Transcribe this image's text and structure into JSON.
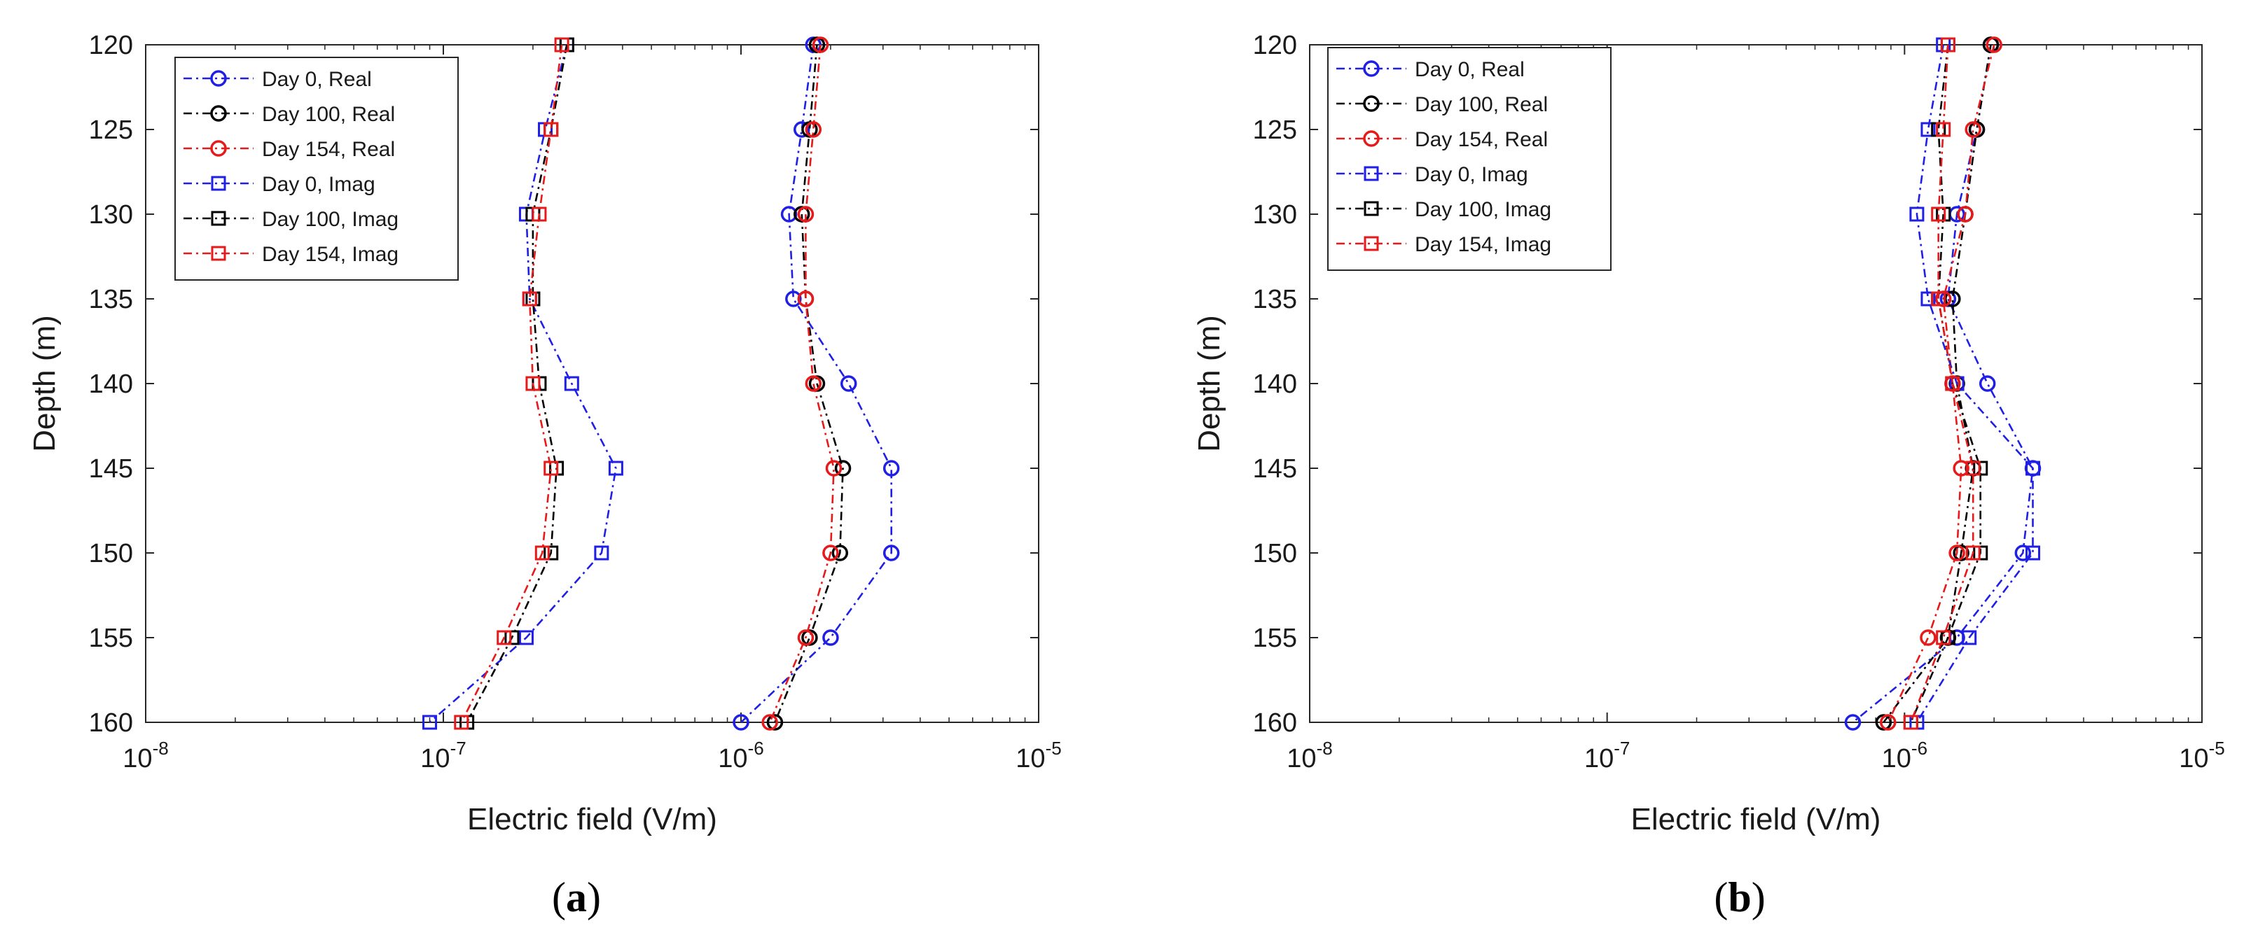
{
  "figure": {
    "panels": [
      {
        "open": "(",
        "letter": "a",
        "close": ")"
      },
      {
        "open": "(",
        "letter": "b",
        "close": ")"
      }
    ]
  },
  "colors": {
    "blue": "#1f1fe6",
    "black": "#000000",
    "red": "#e61a1a"
  },
  "chart_data": [
    {
      "type": "line",
      "panel": "a",
      "xlabel": "Electric field (V/m)",
      "ylabel": "Depth (m)",
      "xscale": "log",
      "xlim": [
        1e-08,
        1e-05
      ],
      "ylim": [
        120,
        160
      ],
      "y_reversed": true,
      "xticks": [
        {
          "base": "10",
          "exp": "-8",
          "value": 1e-08
        },
        {
          "base": "10",
          "exp": "-7",
          "value": 1e-07
        },
        {
          "base": "10",
          "exp": "-6",
          "value": 1e-06
        },
        {
          "base": "10",
          "exp": "-5",
          "value": 1e-05
        }
      ],
      "yticks": [
        "120",
        "125",
        "130",
        "135",
        "140",
        "145",
        "150",
        "155",
        "160"
      ],
      "legend_position": "top-left",
      "depth": [
        120,
        125,
        130,
        135,
        140,
        145,
        150,
        155,
        160
      ],
      "series": [
        {
          "name": "Day 0, Real",
          "color": "blue",
          "marker": "circle",
          "values": [
            1.75e-06,
            1.6e-06,
            1.45e-06,
            1.5e-06,
            2.3e-06,
            3.2e-06,
            3.2e-06,
            2e-06,
            1e-06
          ]
        },
        {
          "name": "Day 100, Real",
          "color": "black",
          "marker": "circle",
          "values": [
            1.8e-06,
            1.7e-06,
            1.6e-06,
            1.65e-06,
            1.8e-06,
            2.2e-06,
            2.15e-06,
            1.7e-06,
            1.3e-06
          ]
        },
        {
          "name": "Day 154, Real",
          "color": "red",
          "marker": "circle",
          "values": [
            1.85e-06,
            1.75e-06,
            1.65e-06,
            1.65e-06,
            1.75e-06,
            2.05e-06,
            2e-06,
            1.65e-06,
            1.25e-06
          ]
        },
        {
          "name": "Day 0, Imag",
          "color": "blue",
          "marker": "square",
          "values": [
            2.6e-07,
            2.2e-07,
            1.9e-07,
            1.95e-07,
            2.7e-07,
            3.8e-07,
            3.4e-07,
            1.9e-07,
            9e-08
          ]
        },
        {
          "name": "Day 100, Imag",
          "color": "black",
          "marker": "square",
          "values": [
            2.6e-07,
            2.3e-07,
            2e-07,
            2e-07,
            2.1e-07,
            2.4e-07,
            2.3e-07,
            1.7e-07,
            1.2e-07
          ]
        },
        {
          "name": "Day 154, Imag",
          "color": "red",
          "marker": "square",
          "values": [
            2.5e-07,
            2.3e-07,
            2.1e-07,
            1.95e-07,
            2e-07,
            2.3e-07,
            2.15e-07,
            1.6e-07,
            1.15e-07
          ]
        }
      ]
    },
    {
      "type": "line",
      "panel": "b",
      "xlabel": "Electric field (V/m)",
      "ylabel": "Depth (m)",
      "xscale": "log",
      "xlim": [
        1e-08,
        1e-05
      ],
      "ylim": [
        120,
        160
      ],
      "y_reversed": true,
      "xticks": [
        {
          "base": "10",
          "exp": "-8",
          "value": 1e-08
        },
        {
          "base": "10",
          "exp": "-7",
          "value": 1e-07
        },
        {
          "base": "10",
          "exp": "-6",
          "value": 1e-06
        },
        {
          "base": "10",
          "exp": "-5",
          "value": 1e-05
        }
      ],
      "yticks": [
        "120",
        "125",
        "130",
        "135",
        "140",
        "145",
        "150",
        "155",
        "160"
      ],
      "legend_position": "top-left",
      "depth": [
        120,
        125,
        130,
        135,
        140,
        145,
        150,
        155,
        160
      ],
      "series": [
        {
          "name": "Day 0, Real",
          "color": "blue",
          "marker": "circle",
          "values": [
            1.95e-06,
            1.75e-06,
            1.5e-06,
            1.4e-06,
            1.9e-06,
            2.7e-06,
            2.5e-06,
            1.5e-06,
            6.7e-07
          ]
        },
        {
          "name": "Day 100, Real",
          "color": "black",
          "marker": "circle",
          "values": [
            1.95e-06,
            1.75e-06,
            1.6e-06,
            1.45e-06,
            1.5e-06,
            1.7e-06,
            1.55e-06,
            1.4e-06,
            8.5e-07
          ]
        },
        {
          "name": "Day 154, Real",
          "color": "red",
          "marker": "circle",
          "values": [
            2e-06,
            1.7e-06,
            1.6e-06,
            1.35e-06,
            1.45e-06,
            1.55e-06,
            1.5e-06,
            1.2e-06,
            8.8e-07
          ]
        },
        {
          "name": "Day 0, Imag",
          "color": "blue",
          "marker": "square",
          "values": [
            1.35e-06,
            1.2e-06,
            1.1e-06,
            1.2e-06,
            1.5e-06,
            2.7e-06,
            2.7e-06,
            1.65e-06,
            1.1e-06
          ]
        },
        {
          "name": "Day 100, Imag",
          "color": "black",
          "marker": "square",
          "values": [
            1.4e-06,
            1.3e-06,
            1.35e-06,
            1.3e-06,
            1.45e-06,
            1.8e-06,
            1.8e-06,
            1.4e-06,
            1.05e-06
          ]
        },
        {
          "name": "Day 154, Imag",
          "color": "red",
          "marker": "square",
          "values": [
            1.4e-06,
            1.35e-06,
            1.3e-06,
            1.3e-06,
            1.45e-06,
            1.7e-06,
            1.7e-06,
            1.35e-06,
            1.05e-06
          ]
        }
      ]
    }
  ]
}
